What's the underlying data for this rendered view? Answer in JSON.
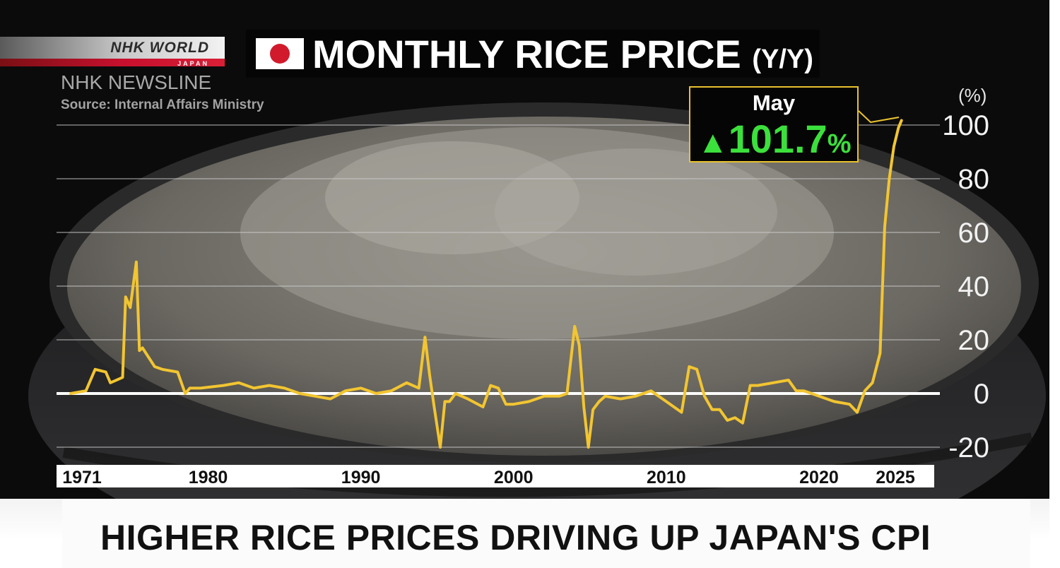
{
  "branding": {
    "logo_name": "NHK WORLD",
    "logo_sub": "JAPAN",
    "program": "NHK NEWSLINE",
    "source": "Source: Internal Affairs Ministry"
  },
  "headline": "HIGHER RICE PRICES DRIVING UP JAPAN'S CPI",
  "colors": {
    "line": "#f2c531",
    "callout_value": "#3ce03c",
    "flag_red": "#d11b2c"
  },
  "callout": {
    "month": "May",
    "arrow": "▲",
    "value": "101.7",
    "unit": "%"
  },
  "chart_data": {
    "type": "line",
    "title": "MONTHLY RICE PRICE",
    "title_suffix": "(Y/Y)",
    "ylabel": "(%)",
    "ylim": [
      -20,
      100
    ],
    "yticks": [
      100,
      80,
      60,
      40,
      20,
      0,
      -20
    ],
    "xlim": [
      1971,
      2025.6
    ],
    "xticks": [
      1971,
      1980,
      1990,
      2000,
      2010,
      2020,
      2025
    ],
    "grid": true,
    "series": [
      {
        "x": [
          1971,
          1972,
          1972.6,
          1973.3,
          1973.6,
          1974.4,
          1974.6,
          1974.9,
          1975.3,
          1975.5,
          1975.7,
          1976.5,
          1977,
          1978,
          1978.5,
          1978.8,
          1979.5,
          1981,
          1982,
          1983,
          1984,
          1985,
          1986,
          1987,
          1988,
          1989,
          1990,
          1991,
          1992,
          1993,
          1993.8,
          1994.2,
          1994.5,
          1994.8,
          1995.2,
          1995.5,
          1995.8,
          1996.2,
          1997,
          1998,
          1998.5,
          1999,
          1999.5,
          2000,
          2001,
          2002,
          2003,
          2003.5,
          2004,
          2004.3,
          2004.6,
          2004.9,
          2005.2,
          2005.6,
          2006,
          2007,
          2008,
          2009,
          2010,
          2011,
          2011.5,
          2012,
          2012.5,
          2013,
          2013.5,
          2014,
          2014.5,
          2015,
          2015.5,
          2016,
          2017,
          2018,
          2018.5,
          2019,
          2020,
          2021,
          2022,
          2022.5,
          2023,
          2023.5,
          2024,
          2024.3,
          2024.6,
          2024.9,
          2025.2,
          2025.4
        ],
        "values": [
          0,
          1,
          9,
          8,
          4,
          6,
          36,
          32,
          49,
          16,
          17,
          10,
          9,
          8,
          0,
          2,
          2,
          3,
          4,
          2,
          3,
          2,
          0,
          -1,
          -2,
          1,
          2,
          0,
          1,
          4,
          2,
          21,
          7,
          -5,
          -20,
          -3,
          -3,
          0,
          -2,
          -5,
          3,
          2,
          -4,
          -4,
          -3,
          -1,
          -1,
          0,
          25,
          18,
          -5,
          -20,
          -6,
          -3,
          -1,
          -2,
          -1,
          1,
          -3,
          -7,
          10,
          9,
          -1,
          -6,
          -6,
          -10,
          -9,
          -11,
          3,
          3,
          4,
          5,
          1,
          1,
          -1,
          -3,
          -4,
          -7,
          1,
          4,
          15,
          62,
          80,
          92,
          99,
          101.7
        ]
      }
    ]
  }
}
